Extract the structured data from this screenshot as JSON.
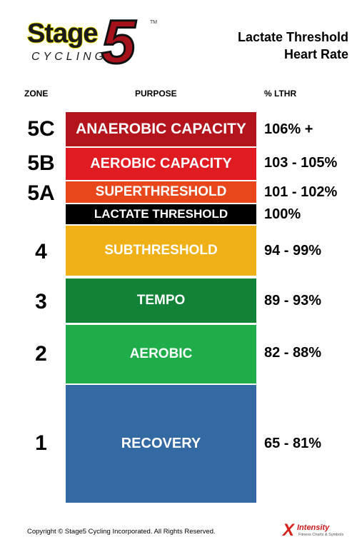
{
  "logo": {
    "stage": "Stage",
    "five": "5",
    "cycling": "CYCLING",
    "tm": "TM"
  },
  "title": {
    "line1": "Lactate Threshold",
    "line2": "Heart Rate"
  },
  "headers": {
    "zone": "ZONE",
    "purpose": "PURPOSE",
    "lthr": "% LTHR"
  },
  "zones": [
    {
      "zone": "5C",
      "purpose": "ANAEROBIC CAPACITY",
      "lthr": "106% +",
      "color": "#b4151c"
    },
    {
      "zone": "5B",
      "purpose": "AEROBIC CAPACITY",
      "lthr": "103 - 105%",
      "color": "#e01b22"
    },
    {
      "zone": "5A",
      "purpose": "SUPERTHRESHOLD",
      "lthr": "101 - 102%",
      "color": "#e8471b"
    },
    {
      "zone": "",
      "purpose": "LACTATE THRESHOLD",
      "lthr": "100%",
      "color": "#000000"
    },
    {
      "zone": "4",
      "purpose": "SUBTHRESHOLD",
      "lthr": "94 - 99%",
      "color": "#f0b017"
    },
    {
      "zone": "3",
      "purpose": "TEMPO",
      "lthr": "89 - 93%",
      "color": "#128237"
    },
    {
      "zone": "2",
      "purpose": "AEROBIC",
      "lthr": "82 - 88%",
      "color": "#1fad4a"
    },
    {
      "zone": "1",
      "purpose": "RECOVERY",
      "lthr": "65 - 81%",
      "color": "#346aa3"
    }
  ],
  "footer": {
    "copyright": "Copyright © Stage5 Cycling Incorporated. All Rights Reserved."
  },
  "brand": {
    "name": "Intensity",
    "sub": "Fitness Charts & Symbols"
  }
}
